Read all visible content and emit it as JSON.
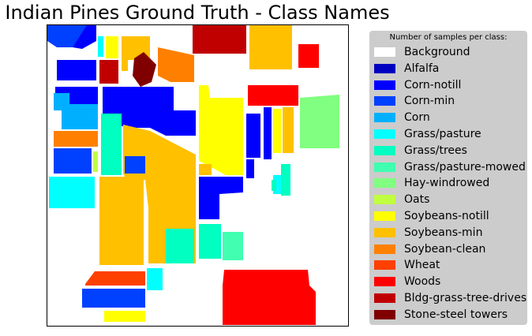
{
  "chart_data": {
    "type": "heatmap",
    "title": "Indian Pines Ground Truth - Class Names",
    "legend_title": "Number of samples per class:",
    "legend_placement": "right",
    "grid": false,
    "axes_visible": false,
    "classes": [
      {
        "name": "Background",
        "color": "#ffffff"
      },
      {
        "name": "Alfalfa",
        "color": "#0000c0"
      },
      {
        "name": "Corn-notill",
        "color": "#0000ff"
      },
      {
        "name": "Corn-min",
        "color": "#0040ff"
      },
      {
        "name": "Corn",
        "color": "#00b0ff"
      },
      {
        "name": "Grass/pasture",
        "color": "#00ffff"
      },
      {
        "name": "Grass/trees",
        "color": "#00ffc0"
      },
      {
        "name": "Grass/pasture-mowed",
        "color": "#40ffb0"
      },
      {
        "name": "Hay-windrowed",
        "color": "#80ff80"
      },
      {
        "name": "Oats",
        "color": "#c0ff40"
      },
      {
        "name": "Soybeans-notill",
        "color": "#ffff00"
      },
      {
        "name": "Soybeans-min",
        "color": "#ffc000"
      },
      {
        "name": "Soybean-clean",
        "color": "#ff8000"
      },
      {
        "name": "Wheat",
        "color": "#ff4000"
      },
      {
        "name": "Woods",
        "color": "#ff0000"
      },
      {
        "name": "Bldg-grass-tree-drives",
        "color": "#c00000"
      },
      {
        "name": "Stone-steel towers",
        "color": "#800000"
      }
    ]
  }
}
